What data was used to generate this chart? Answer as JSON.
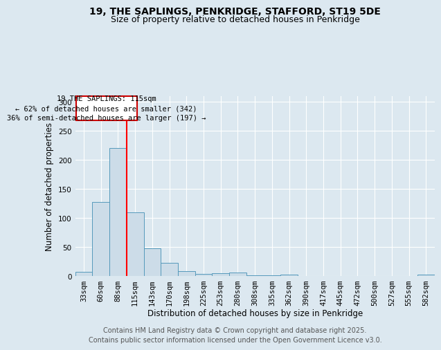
{
  "title": "19, THE SAPLINGS, PENKRIDGE, STAFFORD, ST19 5DE",
  "subtitle": "Size of property relative to detached houses in Penkridge",
  "xlabel": "Distribution of detached houses by size in Penkridge",
  "ylabel": "Number of detached properties",
  "categories": [
    "33sqm",
    "60sqm",
    "88sqm",
    "115sqm",
    "143sqm",
    "170sqm",
    "198sqm",
    "225sqm",
    "253sqm",
    "280sqm",
    "308sqm",
    "335sqm",
    "362sqm",
    "390sqm",
    "417sqm",
    "445sqm",
    "472sqm",
    "500sqm",
    "527sqm",
    "555sqm",
    "582sqm"
  ],
  "values": [
    7,
    127,
    220,
    110,
    48,
    23,
    8,
    4,
    5,
    6,
    1,
    1,
    2,
    0,
    0,
    0,
    0,
    0,
    0,
    0,
    2
  ],
  "bar_color": "#ccdce8",
  "bar_edge_color": "#5599bb",
  "red_line_after_index": 2,
  "annotation_text": "19 THE SAPLINGS: 115sqm\n← 62% of detached houses are smaller (342)\n36% of semi-detached houses are larger (197) →",
  "annotation_box_color": "#ffffff",
  "annotation_box_edge_color": "#cc0000",
  "ylim": [
    0,
    310
  ],
  "yticks": [
    0,
    50,
    100,
    150,
    200,
    250,
    300
  ],
  "fig_bg_color": "#dce8f0",
  "plot_bg_color": "#dce8f0",
  "footer_text": "Contains HM Land Registry data © Crown copyright and database right 2025.\nContains public sector information licensed under the Open Government Licence v3.0.",
  "title_fontsize": 10,
  "subtitle_fontsize": 9,
  "axis_label_fontsize": 8.5,
  "tick_fontsize": 7.5,
  "footer_fontsize": 7
}
